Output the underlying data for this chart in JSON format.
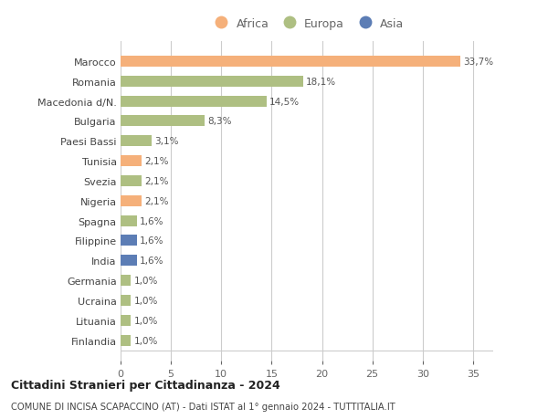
{
  "countries": [
    "Marocco",
    "Romania",
    "Macedonia d/N.",
    "Bulgaria",
    "Paesi Bassi",
    "Tunisia",
    "Svezia",
    "Nigeria",
    "Spagna",
    "Filippine",
    "India",
    "Germania",
    "Ucraina",
    "Lituania",
    "Finlandia"
  ],
  "values": [
    33.7,
    18.1,
    14.5,
    8.3,
    3.1,
    2.1,
    2.1,
    2.1,
    1.6,
    1.6,
    1.6,
    1.0,
    1.0,
    1.0,
    1.0
  ],
  "labels": [
    "33,7%",
    "18,1%",
    "14,5%",
    "8,3%",
    "3,1%",
    "2,1%",
    "2,1%",
    "2,1%",
    "1,6%",
    "1,6%",
    "1,6%",
    "1,0%",
    "1,0%",
    "1,0%",
    "1,0%"
  ],
  "continents": [
    "Africa",
    "Europa",
    "Europa",
    "Europa",
    "Europa",
    "Africa",
    "Europa",
    "Africa",
    "Europa",
    "Asia",
    "Asia",
    "Europa",
    "Europa",
    "Europa",
    "Europa"
  ],
  "colors": {
    "Africa": "#F5B07A",
    "Europa": "#AEBF82",
    "Asia": "#5C7DB5"
  },
  "xlim": [
    0,
    37
  ],
  "xticks": [
    0,
    5,
    10,
    15,
    20,
    25,
    30,
    35
  ],
  "title1": "Cittadini Stranieri per Cittadinanza - 2024",
  "title2": "COMUNE DI INCISA SCAPACCINO (AT) - Dati ISTAT al 1° gennaio 2024 - TUTTITALIA.IT",
  "bg_color": "#ffffff",
  "grid_color": "#cccccc"
}
